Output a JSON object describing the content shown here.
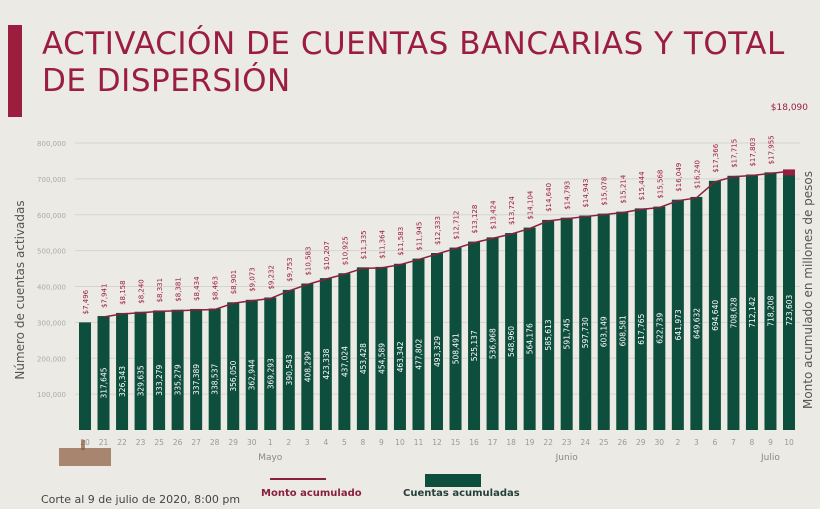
{
  "title": "ACTIVACIÓN DE CUENTAS BANCARIAS Y TOTAL DE DISPERSIÓN",
  "footer": "Corte al 9 de julio de 2020, 8:00 pm",
  "chart_data": {
    "type": "bar+line",
    "ylabel": "Número de cuentas activadas",
    "y2label": "Monto acumulado en millones de pesos",
    "ylim": [
      0,
      800000
    ],
    "yticks": [
      "100,000",
      "200,000",
      "300,000",
      "400,000",
      "500,000",
      "600,000",
      "700,000",
      "800,000"
    ],
    "grid": true,
    "legend_placement": "bottom",
    "colors": {
      "bars": "#0e4e3c",
      "line": "#8a2040",
      "labels": "#9b1e3e"
    },
    "categories": [
      "20",
      "21",
      "22",
      "23",
      "25",
      "26",
      "27",
      "28",
      "29",
      "30",
      "1",
      "2",
      "3",
      "4",
      "5",
      "8",
      "9",
      "10",
      "11",
      "12",
      "15",
      "16",
      "17",
      "18",
      "19",
      "22",
      "23",
      "24",
      "25",
      "26",
      "29",
      "30",
      "2",
      "3",
      "6",
      "7",
      "8",
      "9",
      "10"
    ],
    "months": [
      {
        "label": "Mayo",
        "at_index": 10
      },
      {
        "label": "Junio",
        "at_index": 26
      },
      {
        "label": "Julio",
        "at_index": 37
      }
    ],
    "series": [
      {
        "name": "Cuentas acumuladas",
        "type": "bar",
        "values": [
          300000,
          317645,
          326343,
          329635,
          333279,
          335279,
          337389,
          338537,
          356050,
          362944,
          369293,
          390543,
          408299,
          423338,
          437024,
          453428,
          454589,
          463342,
          477802,
          493329,
          508491,
          525137,
          536968,
          548960,
          564176,
          585613,
          591745,
          597730,
          603149,
          608581,
          617765,
          622739,
          641973,
          649632,
          694640,
          708628,
          712142,
          718208,
          723603
        ],
        "labels": [
          null,
          "317,645",
          "326,343",
          "329,635",
          "333,279",
          "335,279",
          "337,389",
          "338,537",
          "356,050",
          "362,944",
          "369,293",
          "390,543",
          "408,299",
          "423,338",
          "437,024",
          "453,428",
          "454,589",
          "463,342",
          "477,802",
          "493,329",
          "508,491",
          "525,137",
          "536,968",
          "548,960",
          "564,176",
          "585,613",
          "591,745",
          "597,730",
          "603,149",
          "608,581",
          "617,765",
          "622,739",
          "641,973",
          "649,632",
          "694,640",
          "708,628",
          "712,142",
          "718,208",
          "723,603"
        ]
      },
      {
        "name": "Monto acumulado",
        "type": "line",
        "values": [
          7496,
          7941,
          8158,
          8240,
          8331,
          8381,
          8434,
          8463,
          8901,
          9073,
          9232,
          9753,
          10583,
          10207,
          10925,
          11335,
          11364,
          11583,
          11945,
          12333,
          12712,
          13128,
          13424,
          13724,
          14104,
          14640,
          14793,
          14943,
          15078,
          15214,
          15444,
          15568,
          16049,
          16240,
          17366,
          17715,
          17803,
          17955,
          18090
        ],
        "labels": [
          "$7,496",
          "$7,941",
          "$8,158",
          "$8,240",
          "$8,331",
          "$8,381",
          "$8,434",
          "$8,463",
          "$8,901",
          "$9,073",
          "$9,232",
          "$9,753",
          "$10,583",
          "$10,207",
          "$10,925",
          "$11,335",
          "$11,364",
          "$11,583",
          "$11,945",
          "$12,333",
          "$12,712",
          "$13,128",
          "$13,424",
          "$13,724",
          "$14,104",
          "$14,640",
          "$14,793",
          "$14,943",
          "$15,078",
          "$15,214",
          "$15,444",
          "$15,568",
          "$16,049",
          "$16,240",
          "$17,366",
          "$17,715",
          "$17,803",
          "$17,955",
          "$18,090"
        ]
      }
    ]
  }
}
